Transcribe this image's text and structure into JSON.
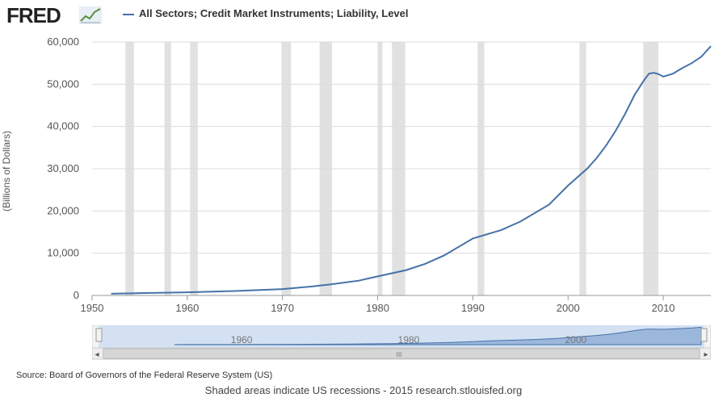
{
  "header": {
    "logo_text": "FRED",
    "logo_icon": "line-chart-icon",
    "legend_label": "All Sectors; Credit Market Instruments; Liability, Level",
    "series_color": "#4572a7"
  },
  "chart_data": {
    "type": "line",
    "title": "",
    "xlabel": "",
    "ylabel": "(Billions of Dollars)",
    "xlim": [
      1950,
      2015
    ],
    "ylim": [
      0,
      60000
    ],
    "xticks": [
      "1950",
      "1960",
      "1970",
      "1980",
      "1990",
      "2000",
      "2010"
    ],
    "yticks": [
      "0",
      "10,000",
      "20,000",
      "30,000",
      "40,000",
      "50,000",
      "60,000"
    ],
    "recessions": [
      [
        1953.5,
        1954.4
      ],
      [
        1957.6,
        1958.3
      ],
      [
        1960.3,
        1961.1
      ],
      [
        1969.9,
        1970.9
      ],
      [
        1973.9,
        1975.2
      ],
      [
        1980.0,
        1980.5
      ],
      [
        1981.5,
        1982.9
      ],
      [
        1990.5,
        1991.2
      ],
      [
        2001.2,
        2001.9
      ],
      [
        2007.9,
        2009.5
      ]
    ],
    "series": [
      {
        "name": "All Sectors; Credit Market Instruments; Liability, Level",
        "x": [
          1952,
          1955,
          1960,
          1965,
          1970,
          1973,
          1975,
          1978,
          1980,
          1983,
          1985,
          1987,
          1990,
          1993,
          1995,
          1998,
          2000,
          2002,
          2003,
          2004,
          2005,
          2006,
          2007,
          2008,
          2008.5,
          2009,
          2009.5,
          2010,
          2011,
          2012,
          2013,
          2014,
          2015
        ],
        "values": [
          400,
          550,
          750,
          1050,
          1500,
          2100,
          2600,
          3500,
          4500,
          6000,
          7500,
          9500,
          13500,
          15500,
          17500,
          21500,
          26000,
          30000,
          32500,
          35500,
          39000,
          43000,
          47500,
          51000,
          52500,
          52700,
          52400,
          51800,
          52500,
          53800,
          55000,
          56500,
          59000
        ]
      }
    ]
  },
  "navigator": {
    "labels": [
      "1960",
      "1980",
      "2000"
    ],
    "scroll_left_glyph": "◂",
    "scroll_right_glyph": "▸",
    "scroll_grip_glyph": "III"
  },
  "footer": {
    "source": "Source: Board of Governors of the Federal Reserve System (US)",
    "note": "Shaded areas indicate US recessions - 2015 research.stlouisfed.org"
  }
}
